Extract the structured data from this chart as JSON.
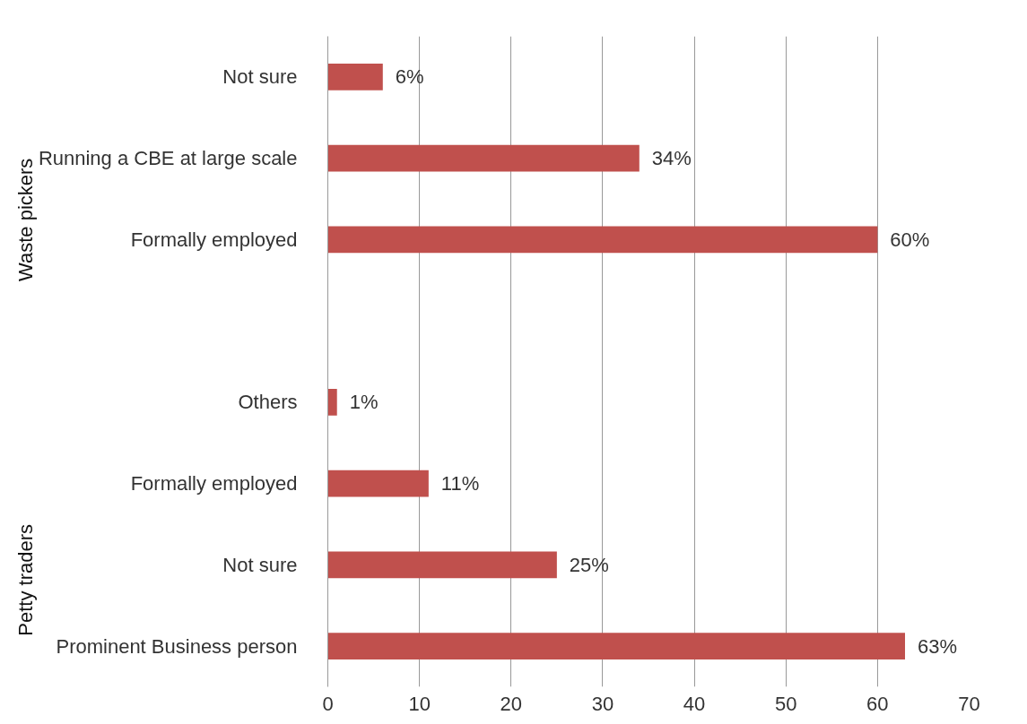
{
  "chart_data": {
    "type": "bar",
    "orientation": "horizontal",
    "categories": [
      "Not sure",
      "Running a CBE at large scale",
      "Formally employed",
      null,
      "Others",
      "Formally employed",
      "Not sure",
      "Prominent Business person"
    ],
    "values": [
      6,
      34,
      60,
      null,
      1,
      11,
      25,
      63
    ],
    "value_labels": [
      "6%",
      "34%",
      "60%",
      null,
      "1%",
      "11%",
      "25%",
      "63%"
    ],
    "color": "#c0504d",
    "xlim": [
      0,
      70
    ],
    "xticks": [
      0,
      10,
      20,
      30,
      40,
      50,
      60,
      70
    ],
    "grid": "x",
    "annotations": [
      "Waste pickers",
      "Petty traders"
    ]
  }
}
